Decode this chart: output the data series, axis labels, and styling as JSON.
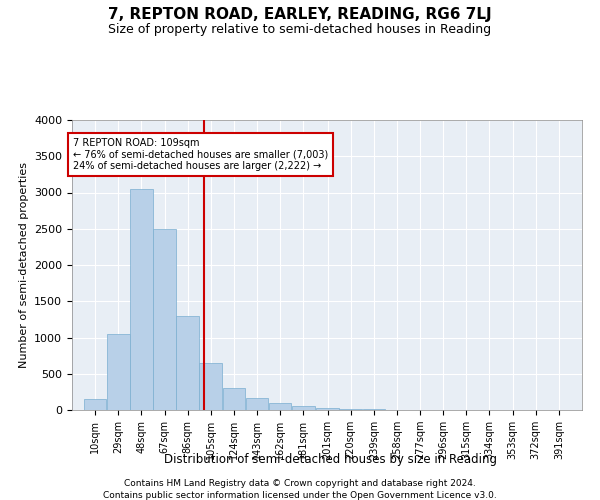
{
  "title": "7, REPTON ROAD, EARLEY, READING, RG6 7LJ",
  "subtitle": "Size of property relative to semi-detached houses in Reading",
  "xlabel": "Distribution of semi-detached houses by size in Reading",
  "ylabel": "Number of semi-detached properties",
  "bar_color": "#b8d0e8",
  "bar_edge_color": "#7aaed0",
  "background_color": "#e8eef5",
  "grid_color": "#ffffff",
  "annotation_line_color": "#cc0000",
  "annotation_box_color": "#cc0000",
  "property_value": 109,
  "annotation_title": "7 REPTON ROAD: 109sqm",
  "annotation_line2": "← 76% of semi-detached houses are smaller (7,003)",
  "annotation_line3": "24% of semi-detached houses are larger (2,222) →",
  "categories": [
    "10sqm",
    "29sqm",
    "48sqm",
    "67sqm",
    "86sqm",
    "105sqm",
    "124sqm",
    "143sqm",
    "162sqm",
    "181sqm",
    "201sqm",
    "220sqm",
    "239sqm",
    "258sqm",
    "277sqm",
    "296sqm",
    "315sqm",
    "334sqm",
    "353sqm",
    "372sqm",
    "391sqm"
  ],
  "values": [
    150,
    1050,
    3050,
    2500,
    1300,
    650,
    300,
    160,
    90,
    50,
    30,
    15,
    8,
    4,
    2,
    1,
    0,
    0,
    0,
    0,
    0
  ],
  "bin_starts": [
    10,
    29,
    48,
    67,
    86,
    105,
    124,
    143,
    162,
    181,
    201,
    220,
    239,
    258,
    277,
    296,
    315,
    334,
    353,
    372,
    391
  ],
  "bin_width": 19,
  "ylim": [
    0,
    4000
  ],
  "yticks": [
    0,
    500,
    1000,
    1500,
    2000,
    2500,
    3000,
    3500,
    4000
  ],
  "footnote1": "Contains HM Land Registry data © Crown copyright and database right 2024.",
  "footnote2": "Contains public sector information licensed under the Open Government Licence v3.0."
}
